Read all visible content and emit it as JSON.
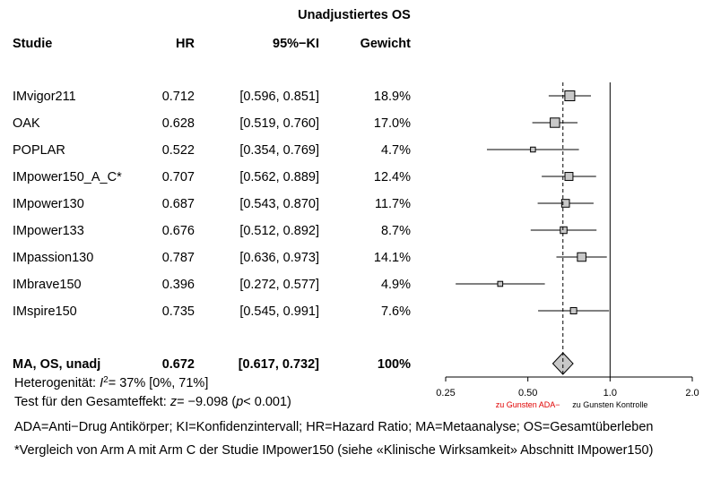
{
  "chart_data": {
    "type": "forest",
    "title": "Unadjustiertes OS",
    "columns": {
      "study": "Studie",
      "hr": "HR",
      "ci": "95%−KI",
      "weight": "Gewicht"
    },
    "studies": [
      {
        "name": "IMvigor211",
        "hr": 0.712,
        "lo": 0.596,
        "hi": 0.851,
        "hr_text": "0.712",
        "ci_text": "[0.596, 0.851]",
        "weight": 18.9,
        "weight_text": "18.9%"
      },
      {
        "name": "OAK",
        "hr": 0.628,
        "lo": 0.519,
        "hi": 0.76,
        "hr_text": "0.628",
        "ci_text": "[0.519, 0.760]",
        "weight": 17.0,
        "weight_text": "17.0%"
      },
      {
        "name": "POPLAR",
        "hr": 0.522,
        "lo": 0.354,
        "hi": 0.769,
        "hr_text": "0.522",
        "ci_text": "[0.354, 0.769]",
        "weight": 4.7,
        "weight_text": "4.7%"
      },
      {
        "name": "IMpower150_A_C*",
        "hr": 0.707,
        "lo": 0.562,
        "hi": 0.889,
        "hr_text": "0.707",
        "ci_text": "[0.562, 0.889]",
        "weight": 12.4,
        "weight_text": "12.4%"
      },
      {
        "name": "IMpower130",
        "hr": 0.687,
        "lo": 0.543,
        "hi": 0.87,
        "hr_text": "0.687",
        "ci_text": "[0.543, 0.870]",
        "weight": 11.7,
        "weight_text": "11.7%"
      },
      {
        "name": "IMpower133",
        "hr": 0.676,
        "lo": 0.512,
        "hi": 0.892,
        "hr_text": "0.676",
        "ci_text": "[0.512, 0.892]",
        "weight": 8.7,
        "weight_text": "8.7%"
      },
      {
        "name": "IMpassion130",
        "hr": 0.787,
        "lo": 0.636,
        "hi": 0.973,
        "hr_text": "0.787",
        "ci_text": "[0.636, 0.973]",
        "weight": 14.1,
        "weight_text": "14.1%"
      },
      {
        "name": "IMbrave150",
        "hr": 0.396,
        "lo": 0.272,
        "hi": 0.577,
        "hr_text": "0.396",
        "ci_text": "[0.272, 0.577]",
        "weight": 4.9,
        "weight_text": "4.9%"
      },
      {
        "name": "IMspire150",
        "hr": 0.735,
        "lo": 0.545,
        "hi": 0.991,
        "hr_text": "0.735",
        "ci_text": "[0.545, 0.991]",
        "weight": 7.6,
        "weight_text": "7.6%"
      }
    ],
    "summary": {
      "name": "MA, OS, unadj",
      "hr": 0.672,
      "lo": 0.617,
      "hi": 0.732,
      "hr_text": "0.672",
      "ci_text": "[0.617, 0.732]",
      "weight_text": "100%"
    },
    "heterogeneity": {
      "prefix": "Heterogenität: ",
      "symbol": "I",
      "superscript": "2",
      "rest": "= 37% [0%, 71%]"
    },
    "overall_test": {
      "prefix": "Test für den Gesamteffekt: ",
      "z": "z",
      "z_value": "= −9.098 (",
      "p": "p",
      "p_value": "< 0.001)"
    },
    "x_axis": {
      "scale": "log",
      "xlim": [
        0.25,
        2.0
      ],
      "ticks": [
        0.25,
        0.5,
        1.0,
        2.0
      ],
      "tick_labels": [
        "0.25",
        "0.50",
        "1.0",
        "2.0"
      ],
      "reference": 1.0
    },
    "favours": {
      "left": "zu Gunsten ADA−",
      "right": "zu Gunsten Kontrolle",
      "left_color": "#e00000"
    },
    "colors": {
      "box_fill": "#c8c8c8",
      "diamond_fill": "#c8c8c8",
      "line": "#000000"
    },
    "footnotes": [
      "ADA=Anti−Drug Antikörper; KI=Konfidenzintervall; HR=Hazard Ratio; MA=Metaanalyse; OS=Gesamtüberleben",
      "*Vergleich von Arm A mit Arm C der Studie IMpower150 (siehe «Klinische Wirksamkeit» Abschnitt IMpower150)"
    ]
  }
}
